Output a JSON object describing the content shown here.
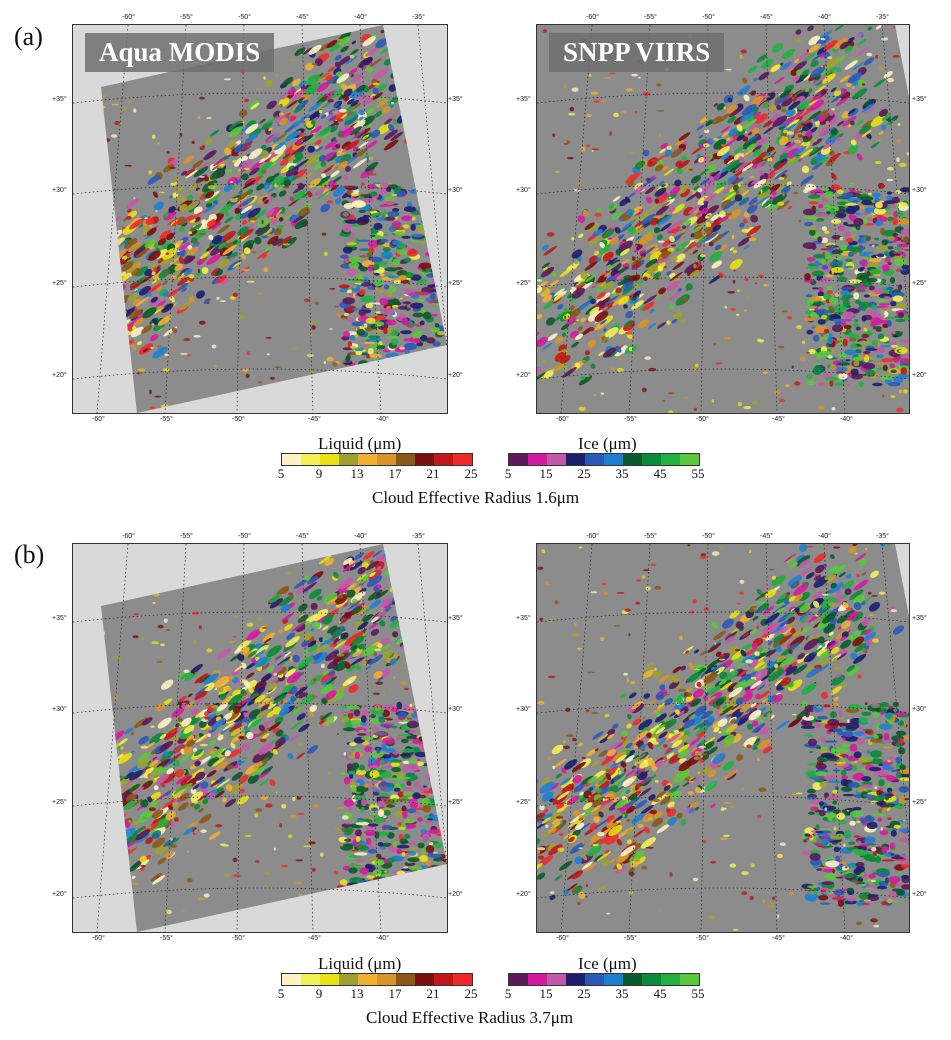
{
  "panels": [
    {
      "letter": "(a)",
      "maps": [
        {
          "label": "Aqua MODIS",
          "variant": "modis"
        },
        {
          "label": "SNPP VIIRS",
          "variant": "viirs"
        }
      ],
      "caption": "Cloud Effective Radius 1.6μm"
    },
    {
      "letter": "(b)",
      "maps": [
        {
          "label": "",
          "variant": "modis"
        },
        {
          "label": "",
          "variant": "viirs"
        }
      ],
      "caption": "Cloud Effective Radius 3.7μm"
    }
  ],
  "axes": {
    "lon_top": [
      "-60°",
      "-55°",
      "-50°",
      "-45°",
      "-40°",
      "-35°"
    ],
    "lon_bottom": [
      "-60°",
      "-55°",
      "-50°",
      "-45°",
      "-40°"
    ],
    "lat": [
      "+35°",
      "+30°",
      "+25°",
      "+20°"
    ]
  },
  "legend": {
    "liquid": {
      "title": "Liquid (μm)",
      "ticks": [
        "5",
        "9",
        "13",
        "17",
        "21",
        "25"
      ],
      "colors": [
        "#fbf3c4",
        "#f2ef57",
        "#e9e012",
        "#a0a032",
        "#f0b030",
        "#d8932a",
        "#8a5a18",
        "#7a0f0f",
        "#c01818",
        "#f02a2a"
      ]
    },
    "ice": {
      "title": "Ice (μm)",
      "ticks": [
        "5",
        "15",
        "25",
        "35",
        "45",
        "55"
      ],
      "colors": [
        "#5a1a5a",
        "#d61aa0",
        "#c35aa8",
        "#1e1e6e",
        "#2a5ab8",
        "#1e7fd0",
        "#0a5a2a",
        "#0a8a3a",
        "#22b040",
        "#5ac83a"
      ]
    }
  },
  "colors": {
    "background_gray": "#8c8c8c",
    "outside_swath": "#d9d9d9"
  }
}
